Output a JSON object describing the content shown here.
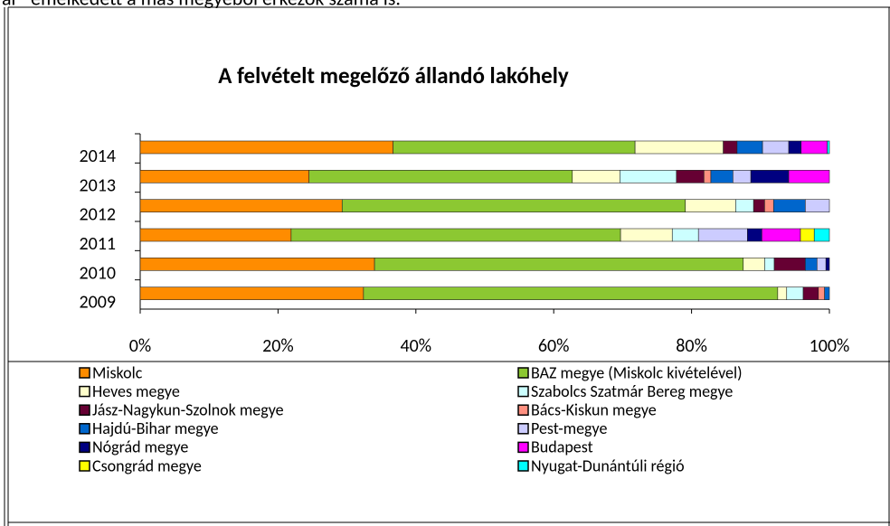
{
  "page_text": "ar\" emelkedett a más megyéből érkezők száma is.",
  "chart_data": {
    "type": "stacked_bar_horizontal",
    "title": "A felvételt megelőző állandó lakóhely",
    "categories": [
      "2014",
      "2013",
      "2012",
      "2011",
      "2010",
      "2009"
    ],
    "xlim": [
      0,
      100
    ],
    "xticks": [
      {
        "value": 0,
        "label": "0%"
      },
      {
        "value": 20,
        "label": "20%"
      },
      {
        "value": 40,
        "label": "40%"
      },
      {
        "value": 60,
        "label": "60%"
      },
      {
        "value": 80,
        "label": "80%"
      },
      {
        "value": 100,
        "label": "100%"
      }
    ],
    "series": [
      {
        "name": "Miskolc",
        "color": "#ff8c00",
        "values": [
          36.7,
          24.5,
          29.3,
          21.9,
          34.0,
          32.4
        ]
      },
      {
        "name": "BAZ megye (Miskolc kivételével)",
        "color": "#8cc832",
        "values": [
          35.1,
          38.2,
          49.8,
          47.8,
          53.5,
          60.1
        ]
      },
      {
        "name": "Heves megye",
        "color": "#ffffcc",
        "values": [
          12.8,
          6.9,
          7.3,
          7.5,
          3.1,
          1.3
        ]
      },
      {
        "name": "Szabolcs Szatmár Bereg megye",
        "color": "#ccffff",
        "values": [
          0,
          8.2,
          2.6,
          3.8,
          1.4,
          2.4
        ]
      },
      {
        "name": "Jász-Nagykun-Szolnok megye",
        "color": "#660033",
        "values": [
          2.0,
          4.0,
          1.6,
          0,
          4.5,
          2.2
        ]
      },
      {
        "name": "Bács-Kiskun megye",
        "color": "#ff9080",
        "values": [
          0,
          1.0,
          1.3,
          0,
          0,
          0.9
        ]
      },
      {
        "name": "Hajdú-Bihar megye",
        "color": "#0066cc",
        "values": [
          3.7,
          3.2,
          4.6,
          0,
          1.7,
          0.7
        ]
      },
      {
        "name": "Pest-megye",
        "color": "#ccccff",
        "values": [
          3.8,
          2.6,
          3.5,
          7.1,
          1.3,
          0
        ]
      },
      {
        "name": "Nógrád megye",
        "color": "#000080",
        "values": [
          1.8,
          5.5,
          0,
          2.1,
          0.5,
          0
        ]
      },
      {
        "name": "Budapest",
        "color": "#ff00ff",
        "values": [
          3.8,
          5.9,
          0,
          5.6,
          0,
          0
        ]
      },
      {
        "name": "Csongrád megye",
        "color": "#ffff00",
        "values": [
          0,
          0,
          0,
          2.0,
          0,
          0
        ]
      },
      {
        "name": "Nyugat-Dunántúli régió",
        "color": "#00ffff",
        "values": [
          0.3,
          0,
          0,
          2.2,
          0,
          0
        ]
      }
    ]
  }
}
